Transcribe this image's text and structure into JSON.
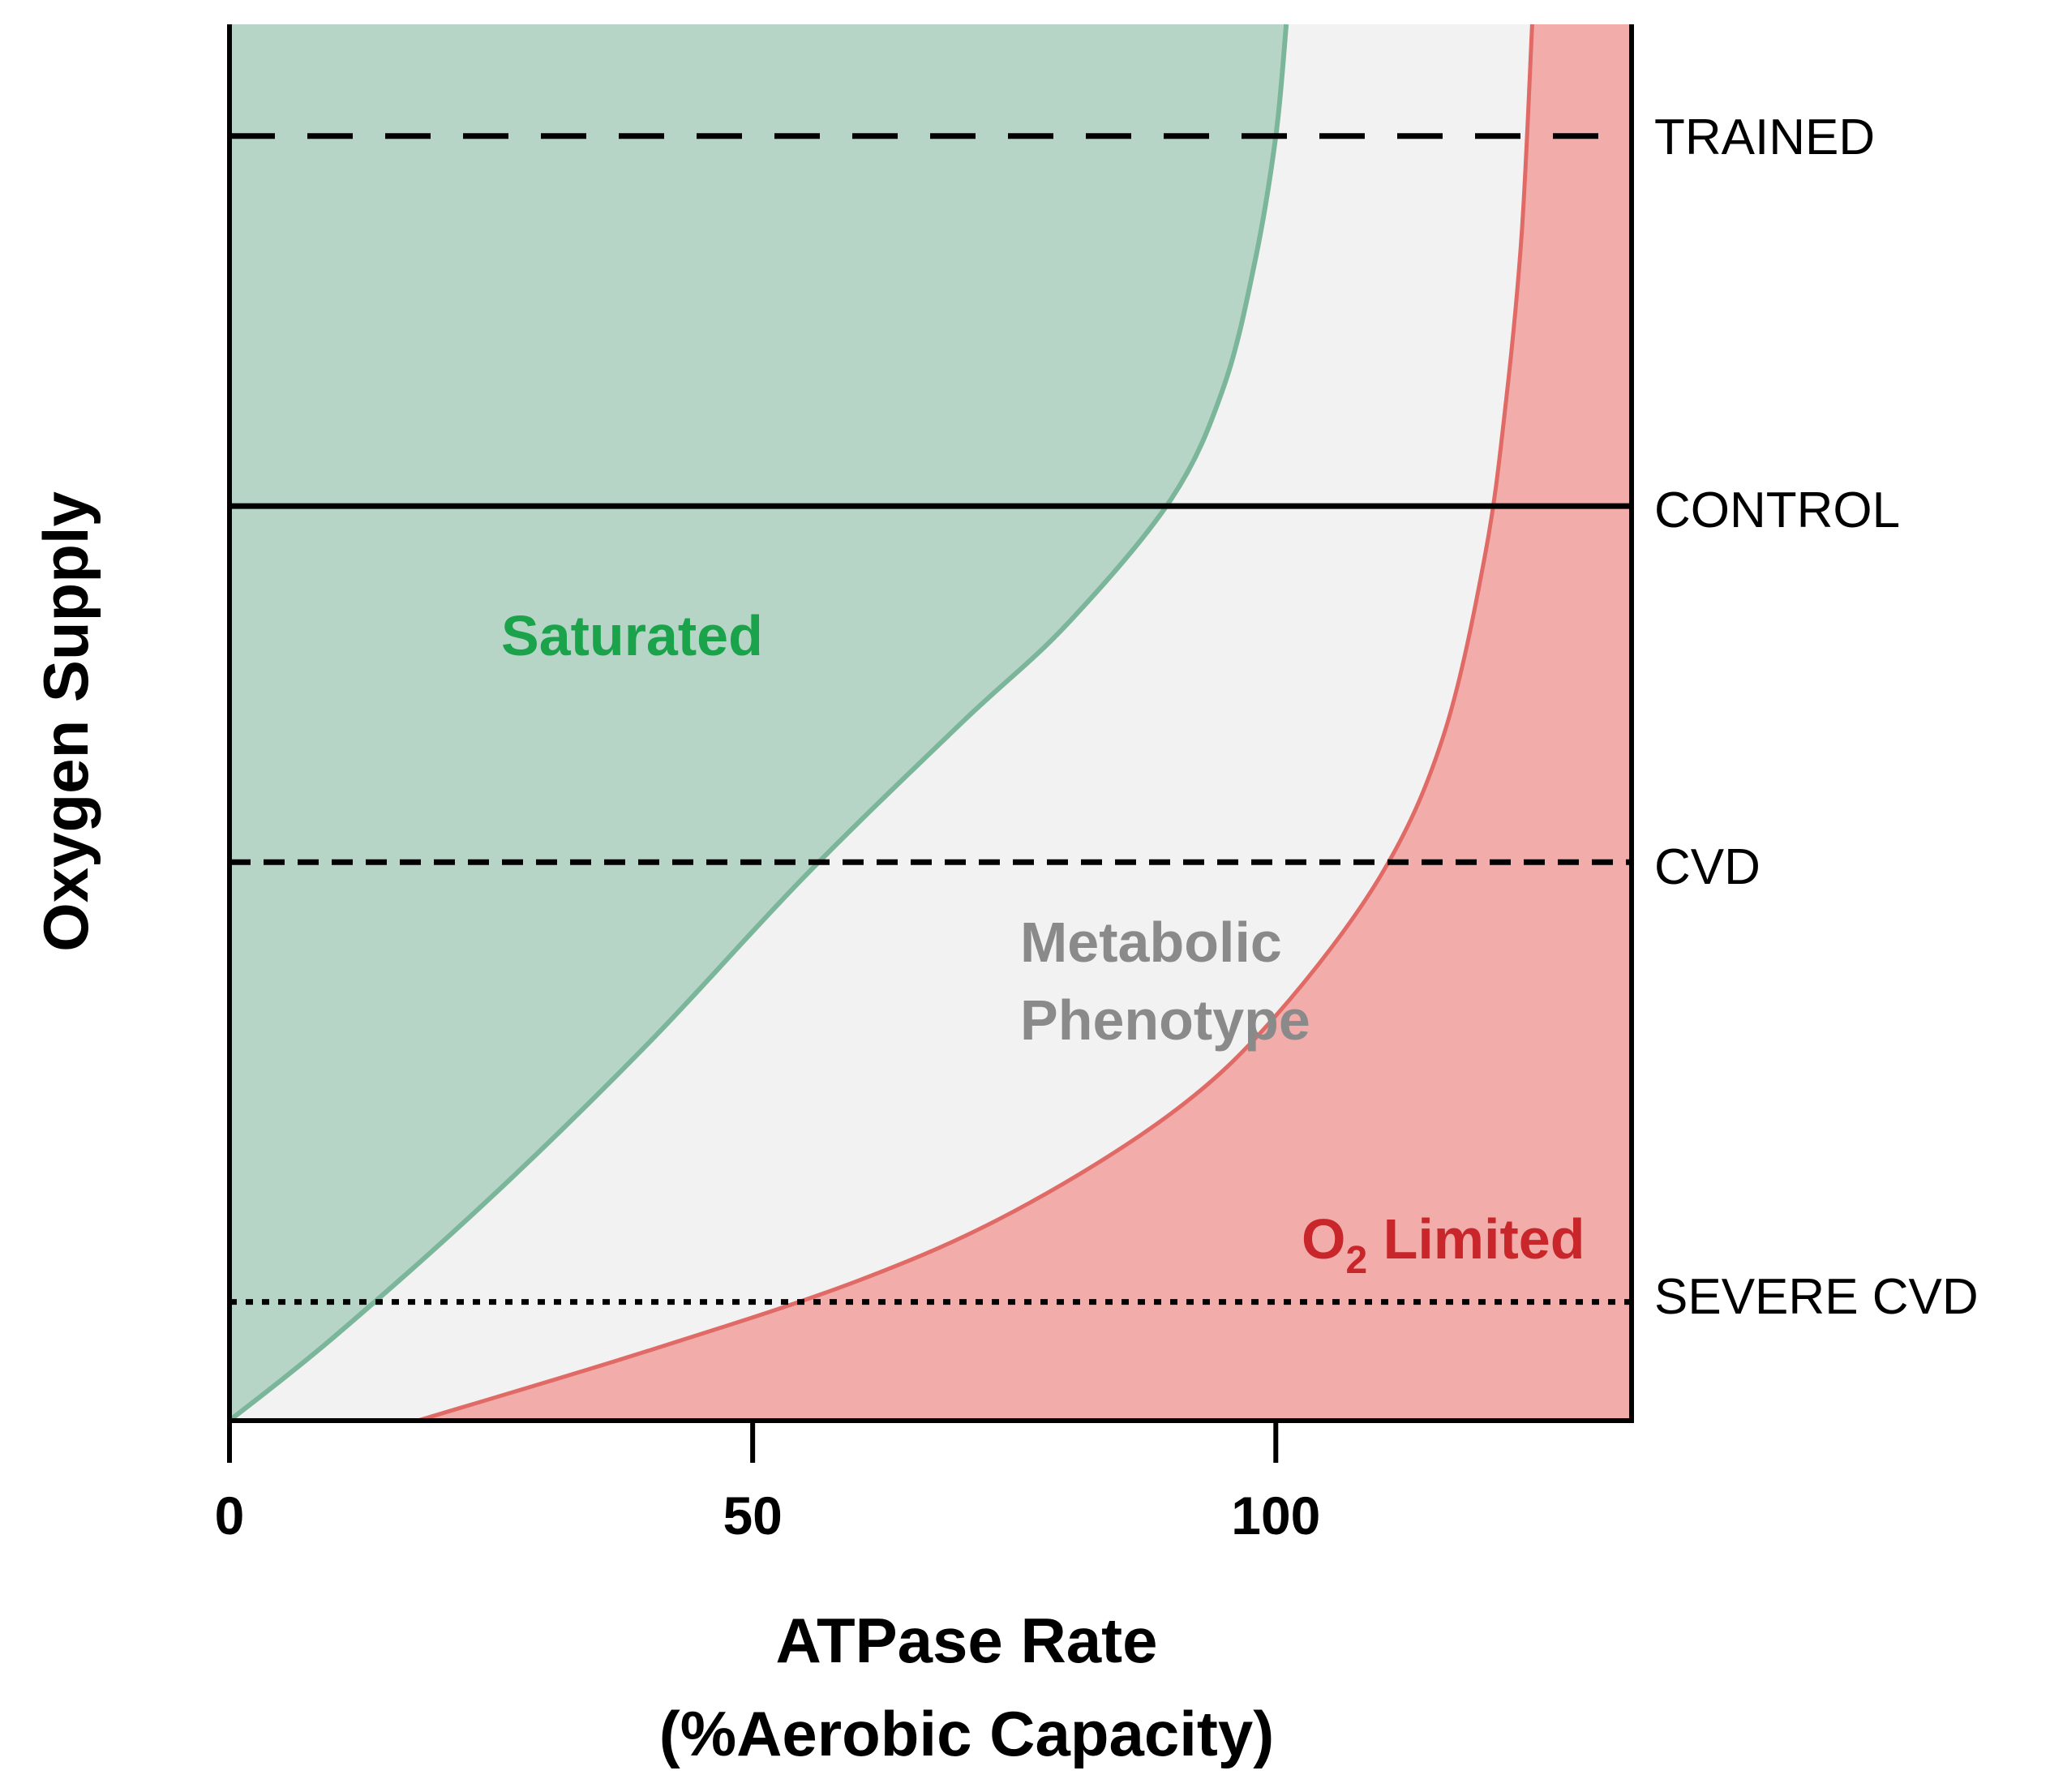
{
  "chart_data": {
    "type": "area",
    "title": "",
    "xlabel_line1": "ATPase Rate",
    "xlabel_line2": "(%Aerobic Capacity)",
    "ylabel": "Oxygen Supply",
    "xlim": [
      0,
      134
    ],
    "ylim": [
      0,
      10
    ],
    "x_ticks": [
      0,
      50,
      100
    ],
    "x_tick_labels": [
      "0",
      "50",
      "100"
    ],
    "grid": false,
    "regions": [
      {
        "name": "Saturated",
        "color": "#b7d5c7",
        "edge_color": "#7bb59a",
        "label_color": "#1aa34a",
        "boundary": [
          [
            0,
            0
          ],
          [
            10,
            0.6
          ],
          [
            25,
            1.6
          ],
          [
            40,
            2.7
          ],
          [
            55,
            3.9
          ],
          [
            70,
            5.0
          ],
          [
            80,
            5.7
          ],
          [
            90,
            6.6
          ],
          [
            95,
            7.4
          ],
          [
            98,
            8.3
          ],
          [
            100,
            9.2
          ],
          [
            101,
            10
          ]
        ]
      },
      {
        "name": "Metabolic Phenotype",
        "label_line1": "Metabolic",
        "label_line2": "Phenotype",
        "color": "#f2f2f2",
        "label_color": "#8a8a8a"
      },
      {
        "name": "O2 Limited",
        "label_main": "O",
        "label_sub": "2",
        "label_rest": " Limited",
        "color": "#f2adab",
        "edge_color": "#e06a66",
        "label_color": "#c8262a",
        "boundary": [
          [
            18,
            0
          ],
          [
            40,
            0.5
          ],
          [
            60,
            1.0
          ],
          [
            75,
            1.5
          ],
          [
            90,
            2.2
          ],
          [
            100,
            2.9
          ],
          [
            110,
            3.9
          ],
          [
            116,
            4.9
          ],
          [
            120,
            6.2
          ],
          [
            122,
            7.3
          ],
          [
            123.5,
            8.5
          ],
          [
            124.5,
            10
          ]
        ]
      }
    ],
    "levels": [
      {
        "name": "TRAINED",
        "y": 9.2,
        "style": "longdash"
      },
      {
        "name": "CONTROL",
        "y": 6.55,
        "style": "solid"
      },
      {
        "name": "CVD",
        "y": 4.0,
        "style": "dash"
      },
      {
        "name": "SEVERE CVD",
        "y": 0.85,
        "style": "dot"
      }
    ]
  }
}
